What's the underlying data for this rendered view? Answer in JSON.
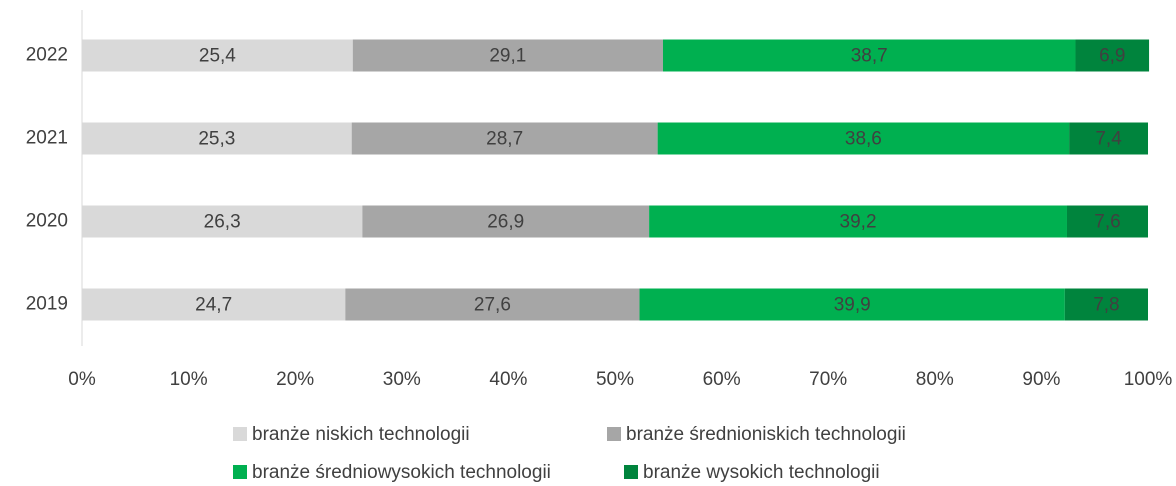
{
  "chart_data": {
    "type": "bar",
    "orientation": "horizontal",
    "stacked": true,
    "categories": [
      "2022",
      "2021",
      "2020",
      "2019"
    ],
    "series": [
      {
        "name": "branże niskich technologii",
        "color": "#d9d9d9",
        "values": [
          25.4,
          25.3,
          26.3,
          24.7
        ],
        "value_labels": [
          "25,4",
          "25,3",
          "26,3",
          "24,7"
        ]
      },
      {
        "name": "branże średnioniskich technologii",
        "color": "#a6a6a6",
        "values": [
          29.1,
          28.7,
          26.9,
          27.6
        ],
        "value_labels": [
          "29,1",
          "28,7",
          "26,9",
          "27,6"
        ]
      },
      {
        "name": "branże średniowysokich technologii",
        "color": "#00b050",
        "values": [
          38.7,
          38.6,
          39.2,
          39.9
        ],
        "value_labels": [
          "38,7",
          "38,6",
          "39,2",
          "39,9"
        ]
      },
      {
        "name": "branże wysokich technologii",
        "color": "#00843d",
        "values": [
          6.9,
          7.4,
          7.6,
          7.8
        ],
        "value_labels": [
          "6,9",
          "7,4",
          "7,6",
          "7,8"
        ]
      }
    ],
    "xlim": [
      0,
      100
    ],
    "xticks": [
      {
        "value": 0,
        "label": "0%"
      },
      {
        "value": 10,
        "label": "10%"
      },
      {
        "value": 20,
        "label": "20%"
      },
      {
        "value": 30,
        "label": "30%"
      },
      {
        "value": 40,
        "label": "40%"
      },
      {
        "value": 50,
        "label": "50%"
      },
      {
        "value": 60,
        "label": "60%"
      },
      {
        "value": 70,
        "label": "70%"
      },
      {
        "value": 80,
        "label": "80%"
      },
      {
        "value": 90,
        "label": "90%"
      },
      {
        "value": 100,
        "label": "100%"
      }
    ],
    "legend": "bottom"
  }
}
